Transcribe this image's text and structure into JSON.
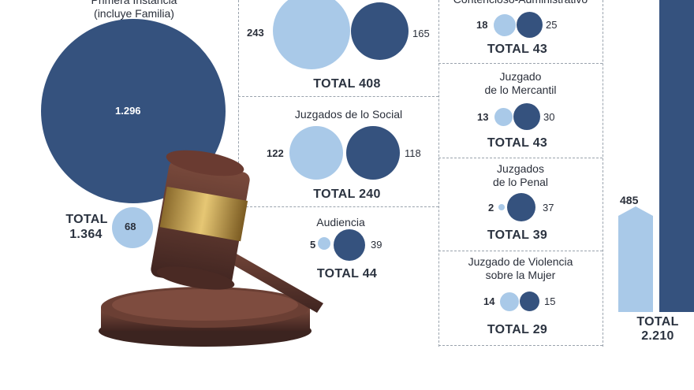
{
  "colors": {
    "light": "#a9c9e8",
    "dark": "#35527e"
  },
  "chart_data": {
    "type": "bubble",
    "groups": [
      {
        "id": "primera",
        "label_lines": [
          "Primera Instancia",
          "(incluye Familia)"
        ],
        "dark": 1296,
        "light": 68,
        "dark_label": "1.296",
        "light_label": "68",
        "total_label": "TOTAL",
        "total_value": "1.364"
      },
      {
        "id": "top-middle",
        "dark": 165,
        "light": 243,
        "dark_label": "165",
        "light_label": "243",
        "total": "TOTAL 408"
      },
      {
        "id": "social",
        "label": "Juzgados de lo Social",
        "dark": 118,
        "light": 122,
        "dark_label": "118",
        "light_label": "122",
        "total": "TOTAL 240"
      },
      {
        "id": "audiencia",
        "label": "Audiencia",
        "dark": 39,
        "light": 5,
        "dark_label": "39",
        "light_label": "5",
        "total": "TOTAL 44"
      },
      {
        "id": "contencioso",
        "label": "Contencioso-Administrativo",
        "dark": 25,
        "light": 18,
        "dark_label": "25",
        "light_label": "18",
        "total": "TOTAL 43"
      },
      {
        "id": "mercantil",
        "label_lines": [
          "Juzgado",
          "de lo Mercantil"
        ],
        "dark": 30,
        "light": 13,
        "dark_label": "30",
        "light_label": "13",
        "total": "TOTAL 43"
      },
      {
        "id": "penal",
        "label_lines": [
          "Juzgados",
          "de lo Penal"
        ],
        "dark": 37,
        "light": 2,
        "dark_label": "37",
        "light_label": "2",
        "total": "TOTAL 39"
      },
      {
        "id": "violencia",
        "label_lines": [
          "Juzgado de Violencia",
          "sobre la Mujer"
        ],
        "dark": 15,
        "light": 14,
        "dark_label": "15",
        "light_label": "14",
        "total": "TOTAL 29"
      }
    ],
    "summary_bars": {
      "light": 485,
      "light_label": "485",
      "total_label": "TOTAL",
      "total_value": "2.210"
    }
  }
}
